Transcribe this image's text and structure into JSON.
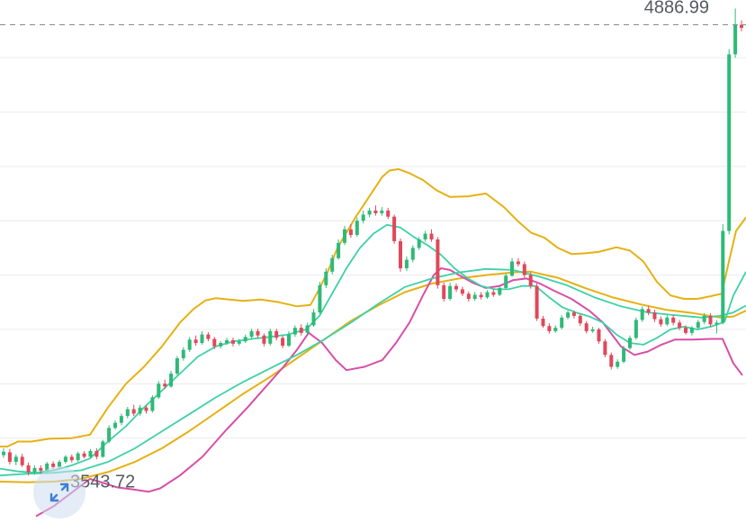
{
  "chart_data": {
    "type": "candlestick",
    "ylim": [
      3420,
      4960
    ],
    "gridlines": [
      4790,
      4630,
      4470,
      4310,
      4150,
      3990,
      3830,
      3670
    ],
    "current_price": {
      "label": "4886.99",
      "value": 4886.99
    },
    "low_marker": {
      "label": "3543.72",
      "value": 3543.72
    },
    "colors": {
      "up": "#2fb978",
      "down": "#e0485a",
      "upper_band": "#e5b114",
      "lower_band": "#d64fa8",
      "ma": "#3ed1a6",
      "grid": "#ececec",
      "dash": "#8a8a8a"
    },
    "candles": [
      [
        3620,
        3630,
        3640,
        3612
      ],
      [
        3628,
        3600,
        3638,
        3592
      ],
      [
        3600,
        3615,
        3622,
        3590
      ],
      [
        3615,
        3590,
        3624,
        3585
      ],
      [
        3590,
        3570,
        3598,
        3560
      ],
      [
        3570,
        3582,
        3590,
        3562
      ],
      [
        3582,
        3574,
        3590,
        3566
      ],
      [
        3574,
        3595,
        3600,
        3570
      ],
      [
        3595,
        3585,
        3602,
        3578
      ],
      [
        3585,
        3600,
        3606,
        3580
      ],
      [
        3600,
        3615,
        3620,
        3595
      ],
      [
        3615,
        3605,
        3622,
        3598
      ],
      [
        3605,
        3625,
        3630,
        3600
      ],
      [
        3625,
        3615,
        3632,
        3610
      ],
      [
        3615,
        3632,
        3638,
        3610
      ],
      [
        3632,
        3615,
        3640,
        3608
      ],
      [
        3615,
        3660,
        3665,
        3612
      ],
      [
        3660,
        3700,
        3708,
        3655
      ],
      [
        3700,
        3715,
        3722,
        3695
      ],
      [
        3715,
        3735,
        3742,
        3708
      ],
      [
        3735,
        3755,
        3762,
        3728
      ],
      [
        3755,
        3742,
        3768,
        3735
      ],
      [
        3742,
        3760,
        3768,
        3736
      ],
      [
        3760,
        3750,
        3768,
        3742
      ],
      [
        3750,
        3790,
        3796,
        3745
      ],
      [
        3790,
        3830,
        3838,
        3785
      ],
      [
        3830,
        3822,
        3842,
        3815
      ],
      [
        3822,
        3860,
        3868,
        3818
      ],
      [
        3860,
        3905,
        3912,
        3855
      ],
      [
        3905,
        3930,
        3938,
        3898
      ],
      [
        3930,
        3960,
        3968,
        3924
      ],
      [
        3960,
        3950,
        3972,
        3942
      ],
      [
        3950,
        3975,
        3985,
        3945
      ],
      [
        3975,
        3962,
        3982,
        3955
      ],
      [
        3962,
        3940,
        3968,
        3932
      ],
      [
        3940,
        3950,
        3956,
        3934
      ],
      [
        3950,
        3958,
        3965,
        3944
      ],
      [
        3958,
        3948,
        3966,
        3940
      ],
      [
        3948,
        3955,
        3962,
        3942
      ],
      [
        3955,
        3968,
        3975,
        3950
      ],
      [
        3968,
        3985,
        3992,
        3962
      ],
      [
        3985,
        3972,
        3992,
        3965
      ],
      [
        3972,
        3948,
        3978,
        3940
      ],
      [
        3948,
        3985,
        3992,
        3942
      ],
      [
        3985,
        3965,
        3992,
        3958
      ],
      [
        3965,
        3942,
        3972,
        3935
      ],
      [
        3942,
        3975,
        3985,
        3938
      ],
      [
        3975,
        3995,
        4002,
        3968
      ],
      [
        3995,
        3980,
        4005,
        3972
      ],
      [
        3980,
        4002,
        4010,
        3975
      ],
      [
        4002,
        4040,
        4050,
        3998
      ],
      [
        4040,
        4120,
        4130,
        4035
      ],
      [
        4120,
        4160,
        4170,
        4112
      ],
      [
        4160,
        4200,
        4210,
        4152
      ],
      [
        4200,
        4245,
        4255,
        4195
      ],
      [
        4245,
        4285,
        4295,
        4238
      ],
      [
        4285,
        4268,
        4300,
        4260
      ],
      [
        4268,
        4310,
        4320,
        4262
      ],
      [
        4310,
        4328,
        4340,
        4302
      ],
      [
        4328,
        4340,
        4348,
        4320
      ],
      [
        4340,
        4332,
        4355,
        4325
      ],
      [
        4332,
        4340,
        4350,
        4325
      ],
      [
        4340,
        4322,
        4348,
        4315
      ],
      [
        4322,
        4250,
        4328,
        4242
      ],
      [
        4250,
        4170,
        4258,
        4160
      ],
      [
        4170,
        4195,
        4205,
        4162
      ],
      [
        4195,
        4230,
        4238,
        4188
      ],
      [
        4230,
        4255,
        4262,
        4224
      ],
      [
        4255,
        4272,
        4280,
        4248
      ],
      [
        4272,
        4255,
        4285,
        4248
      ],
      [
        4255,
        4120,
        4262,
        4110
      ],
      [
        4120,
        4080,
        4128,
        4072
      ],
      [
        4080,
        4118,
        4128,
        4075
      ],
      [
        4118,
        4108,
        4125,
        4100
      ],
      [
        4108,
        4095,
        4116,
        4088
      ],
      [
        4095,
        4080,
        4102,
        4072
      ],
      [
        4080,
        4092,
        4100,
        4074
      ],
      [
        4092,
        4085,
        4100,
        4078
      ],
      [
        4085,
        4100,
        4106,
        4080
      ],
      [
        4100,
        4092,
        4108,
        4086
      ],
      [
        4092,
        4112,
        4118,
        4088
      ],
      [
        4112,
        4148,
        4155,
        4108
      ],
      [
        4148,
        4190,
        4200,
        4145
      ],
      [
        4190,
        4182,
        4200,
        4175
      ],
      [
        4182,
        4150,
        4190,
        4142
      ],
      [
        4150,
        4118,
        4158,
        4110
      ],
      [
        4118,
        4022,
        4125,
        4015
      ],
      [
        4022,
        4000,
        4030,
        3995
      ],
      [
        4000,
        3985,
        4008,
        3978
      ],
      [
        3985,
        3995,
        4002,
        3980
      ],
      [
        3995,
        4025,
        4032,
        3990
      ],
      [
        4025,
        4040,
        4046,
        4020
      ],
      [
        4040,
        4030,
        4046,
        4022
      ],
      [
        4030,
        4008,
        4036,
        4000
      ],
      [
        4008,
        3985,
        4015,
        3978
      ],
      [
        3985,
        3990,
        3998,
        3980
      ],
      [
        3990,
        3955,
        3995,
        3948
      ],
      [
        3955,
        3915,
        3962,
        3908
      ],
      [
        3915,
        3880,
        3922,
        3872
      ],
      [
        3880,
        3895,
        3902,
        3874
      ],
      [
        3895,
        3935,
        3942,
        3890
      ],
      [
        3935,
        3965,
        3972,
        3930
      ],
      [
        3965,
        4018,
        4025,
        3960
      ],
      [
        4018,
        4050,
        4058,
        4012
      ],
      [
        4050,
        4040,
        4058,
        4032
      ],
      [
        4040,
        4020,
        4048,
        4012
      ],
      [
        4020,
        4005,
        4028,
        3998
      ],
      [
        4005,
        4025,
        4032,
        4000
      ],
      [
        4025,
        4010,
        4032,
        4002
      ],
      [
        4010,
        3995,
        4018,
        3988
      ],
      [
        3995,
        3980,
        4002,
        3975
      ],
      [
        3980,
        3995,
        4000,
        3972
      ],
      [
        3995,
        4012,
        4018,
        3990
      ],
      [
        4012,
        4030,
        4038,
        4005
      ],
      [
        4030,
        4005,
        4038,
        3998
      ],
      [
        4005,
        4010,
        4018,
        3978
      ],
      [
        4010,
        4280,
        4300,
        4005
      ],
      [
        4280,
        4800,
        4815,
        4270
      ],
      [
        4800,
        4886.99,
        4935,
        4790
      ],
      [
        4886.99,
        4878,
        4900,
        4868
      ]
    ],
    "upper_band": [
      [
        0,
        3645
      ],
      [
        8,
        3645
      ],
      [
        20,
        3660
      ],
      [
        35,
        3660
      ],
      [
        55,
        3668
      ],
      [
        80,
        3670
      ],
      [
        100,
        3680
      ],
      [
        120,
        3760
      ],
      [
        140,
        3830
      ],
      [
        160,
        3880
      ],
      [
        180,
        3940
      ],
      [
        200,
        4010
      ],
      [
        215,
        4050
      ],
      [
        228,
        4075
      ],
      [
        240,
        4082
      ],
      [
        255,
        4078
      ],
      [
        270,
        4074
      ],
      [
        290,
        4078
      ],
      [
        310,
        4070
      ],
      [
        330,
        4058
      ],
      [
        345,
        4062
      ],
      [
        355,
        4110
      ],
      [
        365,
        4165
      ],
      [
        375,
        4230
      ],
      [
        385,
        4275
      ],
      [
        395,
        4320
      ],
      [
        405,
        4360
      ],
      [
        415,
        4400
      ],
      [
        425,
        4440
      ],
      [
        433,
        4458
      ],
      [
        443,
        4462
      ],
      [
        455,
        4450
      ],
      [
        470,
        4430
      ],
      [
        485,
        4400
      ],
      [
        500,
        4380
      ],
      [
        520,
        4382
      ],
      [
        540,
        4390
      ],
      [
        560,
        4350
      ],
      [
        575,
        4310
      ],
      [
        590,
        4275
      ],
      [
        605,
        4260
      ],
      [
        620,
        4230
      ],
      [
        635,
        4212
      ],
      [
        650,
        4214
      ],
      [
        665,
        4218
      ],
      [
        685,
        4232
      ],
      [
        700,
        4222
      ],
      [
        715,
        4190
      ],
      [
        730,
        4130
      ],
      [
        745,
        4090
      ],
      [
        760,
        4080
      ],
      [
        775,
        4080
      ],
      [
        790,
        4088
      ],
      [
        802,
        4095
      ],
      [
        810,
        4190
      ],
      [
        818,
        4280
      ],
      [
        829,
        4320
      ]
    ],
    "lower_band": [
      [
        40,
        3440
      ],
      [
        60,
        3470
      ],
      [
        80,
        3510
      ],
      [
        100,
        3550
      ],
      [
        115,
        3538
      ],
      [
        130,
        3525
      ],
      [
        150,
        3518
      ],
      [
        165,
        3512
      ],
      [
        178,
        3522
      ],
      [
        200,
        3560
      ],
      [
        225,
        3615
      ],
      [
        250,
        3690
      ],
      [
        275,
        3760
      ],
      [
        295,
        3820
      ],
      [
        315,
        3880
      ],
      [
        330,
        3930
      ],
      [
        343,
        3980
      ],
      [
        358,
        3950
      ],
      [
        373,
        3900
      ],
      [
        385,
        3870
      ],
      [
        405,
        3880
      ],
      [
        425,
        3900
      ],
      [
        440,
        3950
      ],
      [
        455,
        4010
      ],
      [
        470,
        4090
      ],
      [
        482,
        4150
      ],
      [
        490,
        4170
      ],
      [
        500,
        4165
      ],
      [
        510,
        4150
      ],
      [
        525,
        4128
      ],
      [
        540,
        4112
      ],
      [
        555,
        4118
      ],
      [
        570,
        4135
      ],
      [
        585,
        4140
      ],
      [
        600,
        4125
      ],
      [
        615,
        4105
      ],
      [
        635,
        4080
      ],
      [
        655,
        4045
      ],
      [
        670,
        4010
      ],
      [
        690,
        3940
      ],
      [
        705,
        3915
      ],
      [
        720,
        3925
      ],
      [
        735,
        3945
      ],
      [
        750,
        3960
      ],
      [
        770,
        3960
      ],
      [
        790,
        3962
      ],
      [
        803,
        3962
      ],
      [
        815,
        3890
      ],
      [
        825,
        3855
      ]
    ],
    "ma_fast": [
      [
        0,
        3580
      ],
      [
        20,
        3572
      ],
      [
        40,
        3568
      ],
      [
        60,
        3575
      ],
      [
        80,
        3590
      ],
      [
        100,
        3610
      ],
      [
        120,
        3660
      ],
      [
        140,
        3705
      ],
      [
        160,
        3760
      ],
      [
        180,
        3810
      ],
      [
        200,
        3860
      ],
      [
        220,
        3910
      ],
      [
        240,
        3940
      ],
      [
        260,
        3955
      ],
      [
        280,
        3962
      ],
      [
        300,
        3968
      ],
      [
        320,
        3975
      ],
      [
        340,
        3990
      ],
      [
        355,
        4030
      ],
      [
        370,
        4100
      ],
      [
        385,
        4170
      ],
      [
        400,
        4230
      ],
      [
        415,
        4272
      ],
      [
        430,
        4298
      ],
      [
        445,
        4290
      ],
      [
        460,
        4262
      ],
      [
        475,
        4238
      ],
      [
        490,
        4210
      ],
      [
        505,
        4170
      ],
      [
        520,
        4140
      ],
      [
        535,
        4118
      ],
      [
        550,
        4108
      ],
      [
        565,
        4108
      ],
      [
        580,
        4118
      ],
      [
        595,
        4118
      ],
      [
        610,
        4085
      ],
      [
        625,
        4055
      ],
      [
        640,
        4040
      ],
      [
        655,
        4028
      ],
      [
        670,
        4010
      ],
      [
        685,
        3975
      ],
      [
        700,
        3950
      ],
      [
        715,
        3945
      ],
      [
        730,
        3965
      ],
      [
        745,
        3990
      ],
      [
        760,
        3998
      ],
      [
        775,
        3990
      ],
      [
        790,
        3998
      ],
      [
        805,
        4012
      ],
      [
        815,
        4090
      ],
      [
        829,
        4160
      ]
    ],
    "ma_mid": [
      [
        0,
        3560
      ],
      [
        30,
        3565
      ],
      [
        60,
        3568
      ],
      [
        90,
        3575
      ],
      [
        120,
        3600
      ],
      [
        150,
        3640
      ],
      [
        180,
        3690
      ],
      [
        210,
        3740
      ],
      [
        240,
        3790
      ],
      [
        270,
        3835
      ],
      [
        300,
        3875
      ],
      [
        330,
        3915
      ],
      [
        360,
        3960
      ],
      [
        390,
        4010
      ],
      [
        420,
        4065
      ],
      [
        450,
        4115
      ],
      [
        480,
        4140
      ],
      [
        510,
        4158
      ],
      [
        540,
        4168
      ],
      [
        570,
        4165
      ],
      [
        600,
        4145
      ],
      [
        630,
        4120
      ],
      [
        660,
        4085
      ],
      [
        690,
        4058
      ],
      [
        720,
        4040
      ],
      [
        750,
        4032
      ],
      [
        780,
        4025
      ],
      [
        800,
        4030
      ],
      [
        815,
        4040
      ],
      [
        829,
        4060
      ]
    ],
    "ma_slow": [
      [
        0,
        3542
      ],
      [
        30,
        3540
      ],
      [
        60,
        3542
      ],
      [
        90,
        3550
      ],
      [
        120,
        3570
      ],
      [
        150,
        3600
      ],
      [
        180,
        3640
      ],
      [
        210,
        3690
      ],
      [
        240,
        3745
      ],
      [
        270,
        3800
      ],
      [
        300,
        3850
      ],
      [
        330,
        3905
      ],
      [
        360,
        3960
      ],
      [
        390,
        4015
      ],
      [
        420,
        4060
      ],
      [
        450,
        4100
      ],
      [
        480,
        4125
      ],
      [
        510,
        4140
      ],
      [
        540,
        4150
      ],
      [
        570,
        4158
      ],
      [
        590,
        4160
      ],
      [
        620,
        4142
      ],
      [
        650,
        4112
      ],
      [
        680,
        4085
      ],
      [
        710,
        4065
      ],
      [
        740,
        4048
      ],
      [
        770,
        4038
      ],
      [
        800,
        4025
      ],
      [
        815,
        4028
      ],
      [
        829,
        4045
      ]
    ]
  }
}
